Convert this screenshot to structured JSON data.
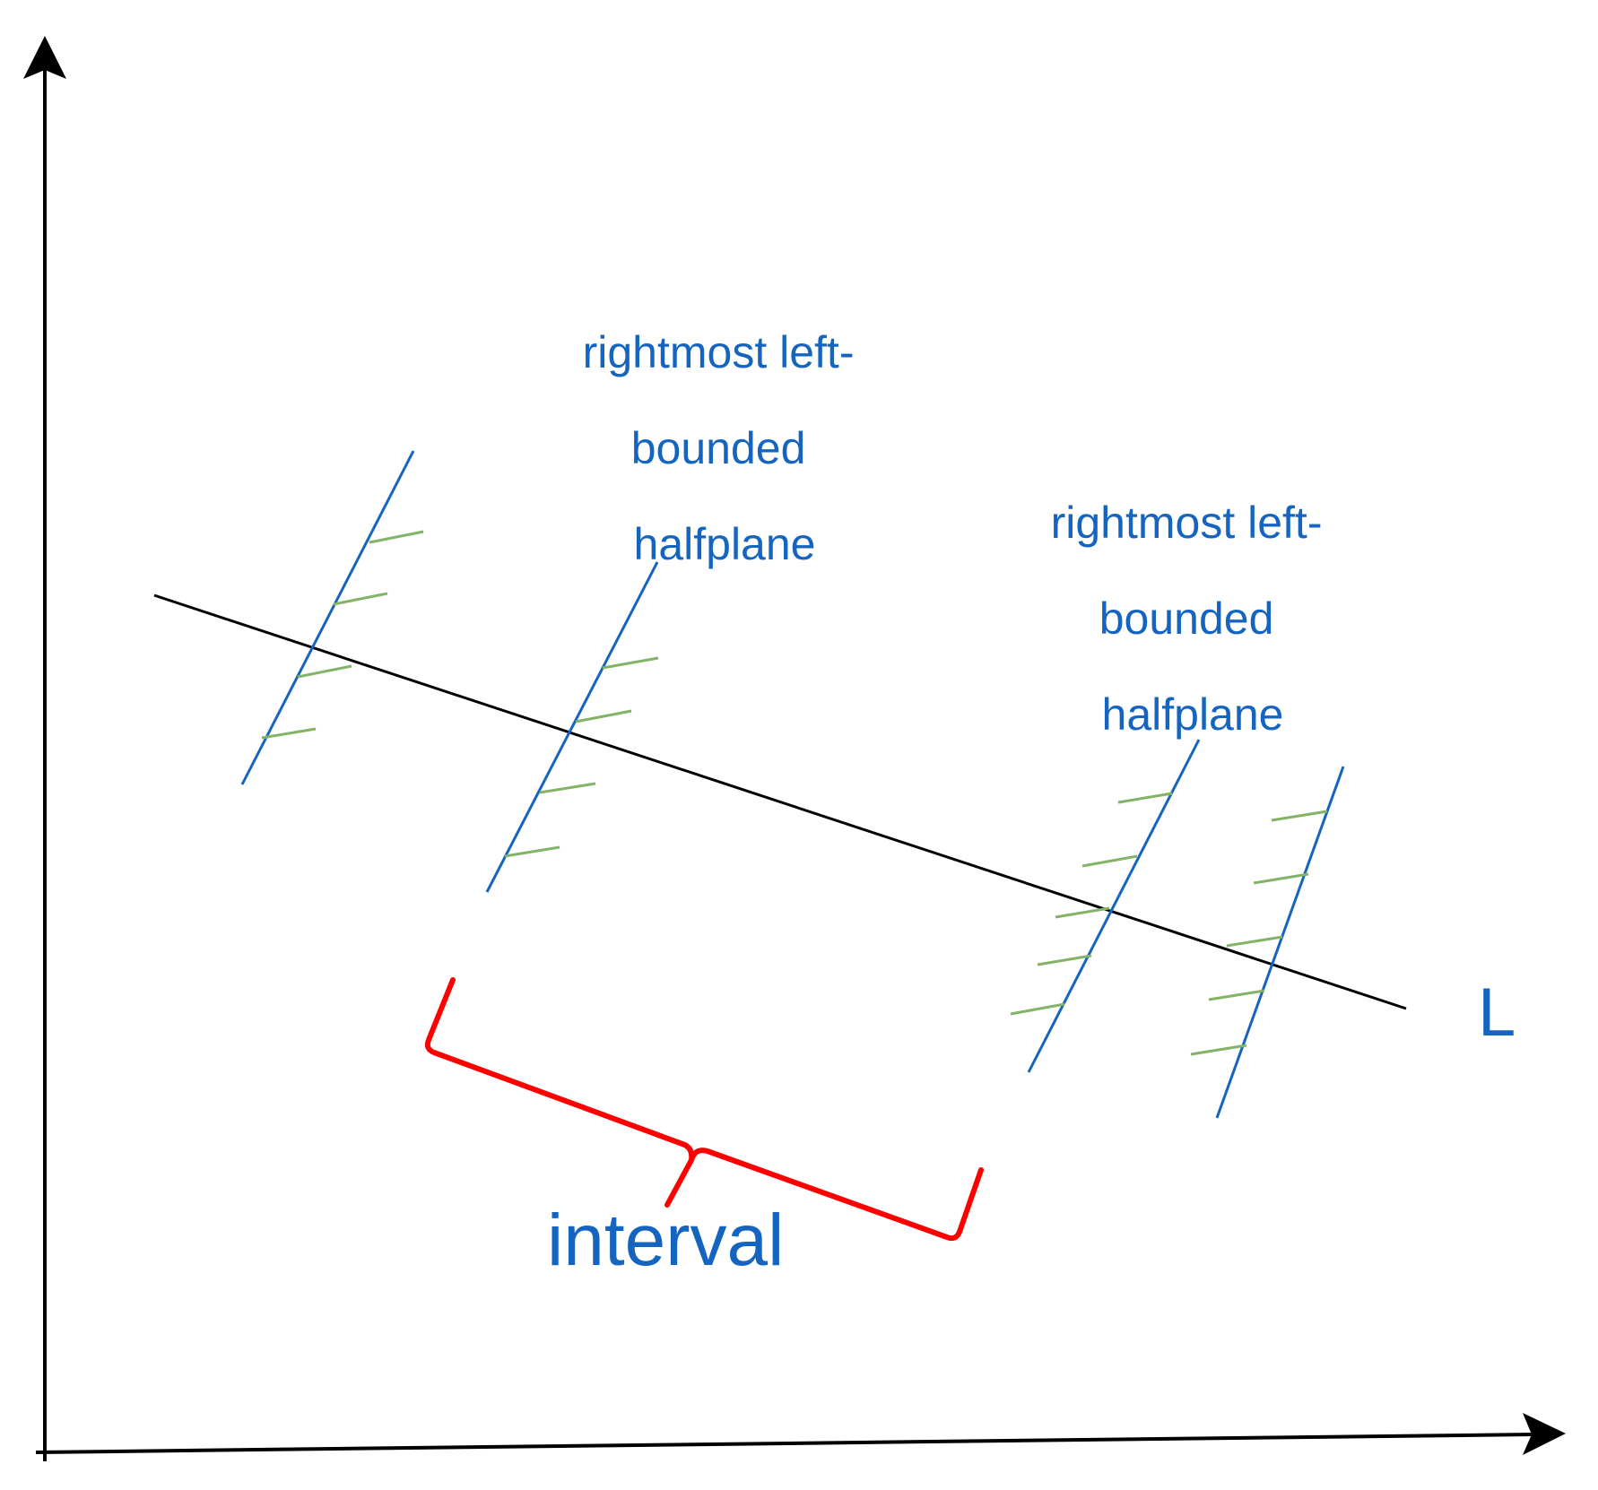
{
  "labels": {
    "rightmost_halfplane_1": [
      "rightmost left-",
      "bounded",
      "halfplane"
    ],
    "rightmost_halfplane_2": [
      "rightmost left-",
      "bounded",
      "halfplane"
    ],
    "line_L": "L",
    "interval": "interval"
  },
  "colors": {
    "axis": "#000000",
    "line_L": "#000000",
    "halfplane_boundary": "#1565c0",
    "hatch": "#82b366",
    "interval_bracket": "#ff0000",
    "label_text": "#1565c0"
  }
}
